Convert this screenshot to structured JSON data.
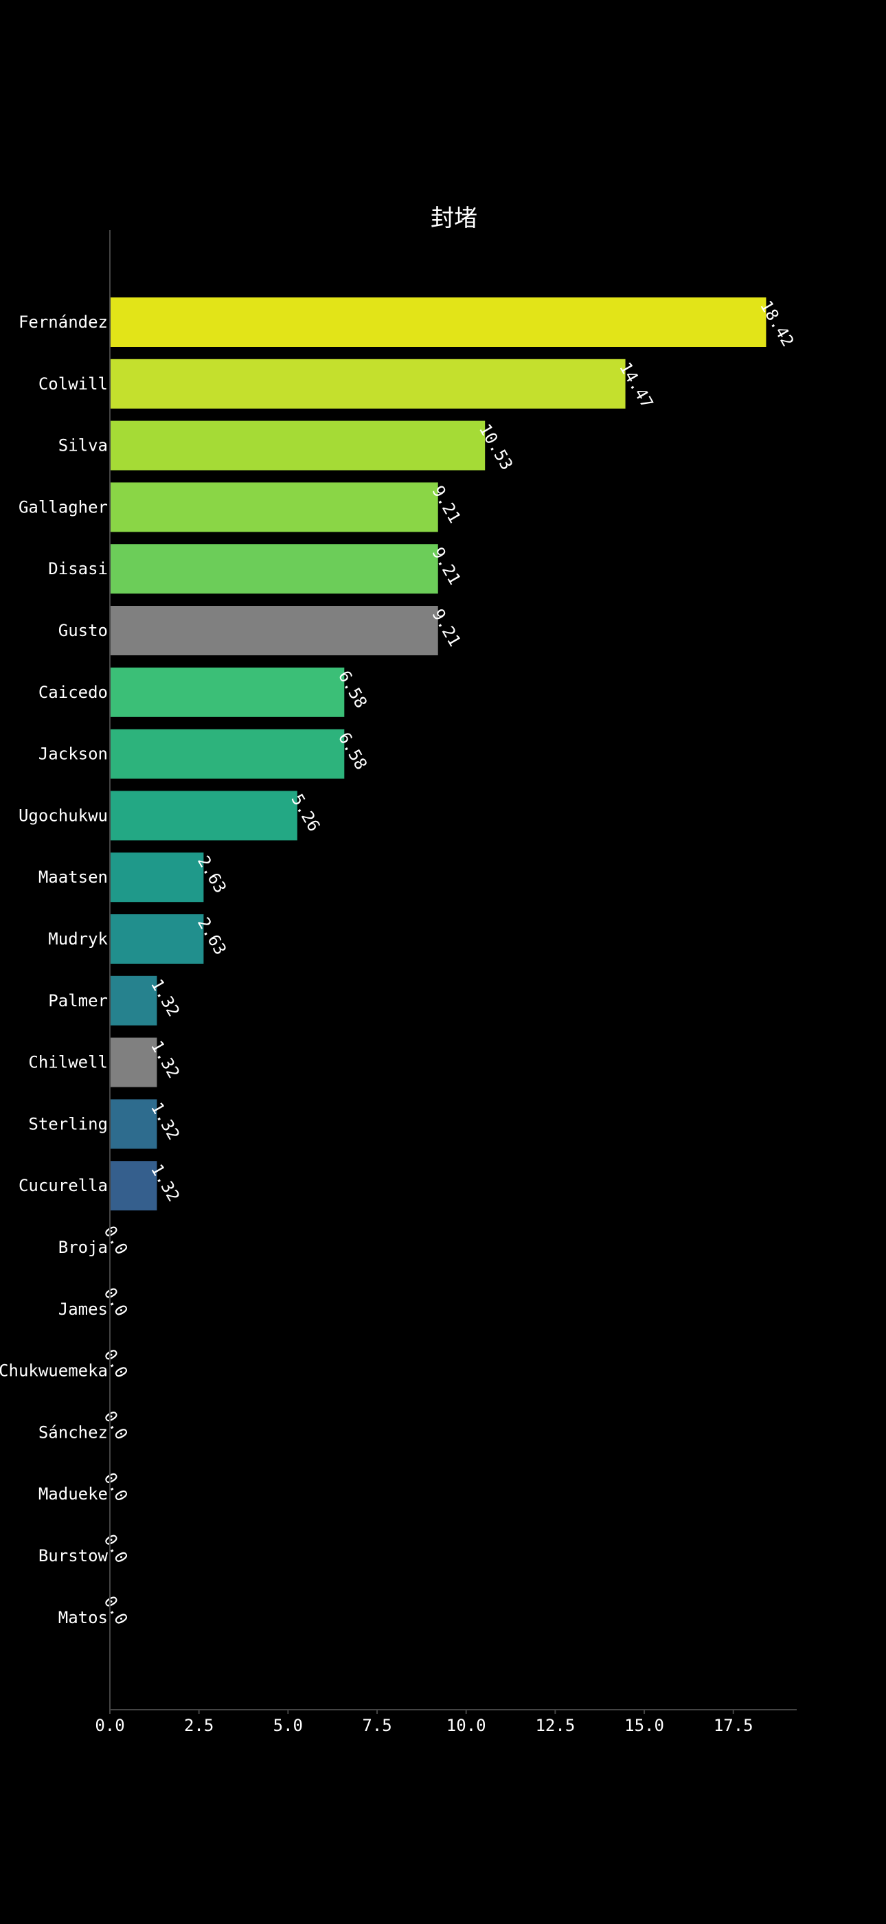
{
  "chart_data": {
    "type": "bar",
    "orientation": "horizontal",
    "title": "封堵",
    "xlabel": "",
    "ylabel": "",
    "xlim": [
      0,
      19.34
    ],
    "x_ticks": [
      "0.0",
      "2.5",
      "5.0",
      "7.5",
      "10.0",
      "12.5",
      "15.0",
      "17.5"
    ],
    "categories": [
      "Fernández",
      "Colwill",
      "Silva",
      "Gallagher",
      "Disasi",
      "Gusto",
      "Caicedo",
      "Jackson",
      "Ugochukwu",
      "Maatsen",
      "Mudryk",
      "Palmer",
      "Chilwell",
      "Sterling",
      "Cucurella",
      "Broja",
      "James",
      "Chukwuemeka",
      "Sánchez",
      "Madueke",
      "Burstow",
      "Matos"
    ],
    "values": [
      18.42,
      14.47,
      10.53,
      9.21,
      9.21,
      9.21,
      6.58,
      6.58,
      5.26,
      2.63,
      2.63,
      1.32,
      1.32,
      1.32,
      1.32,
      0.0,
      0.0,
      0.0,
      0.0,
      0.0,
      0.0,
      0.0
    ],
    "value_labels": [
      "18.42",
      "14.47",
      "10.53",
      "9.21",
      "9.21",
      "9.21",
      "6.58",
      "6.58",
      "5.26",
      "2.63",
      "2.63",
      "1.32",
      "1.32",
      "1.32",
      "1.32",
      "0.0",
      "0.0",
      "0.0",
      "0.0",
      "0.0",
      "0.0",
      "0.0"
    ],
    "colors": [
      "#e2e418",
      "#c4e02d",
      "#a5db36",
      "#8ad646",
      "#6ccd59",
      "#808080",
      "#3bbf77",
      "#2db37c",
      "#23a884",
      "#1f998a",
      "#218f8d",
      "#26828e",
      "#808080",
      "#2e6c8e",
      "#355f8d",
      "#3f4a8a",
      "#443a83",
      "#472d7b",
      "#481c6e",
      "#471063",
      "#450457",
      "#440154"
    ],
    "grid": false,
    "legend": "none",
    "background": "#000000",
    "text_color": "#ffffff",
    "axis_color": "#444444"
  }
}
